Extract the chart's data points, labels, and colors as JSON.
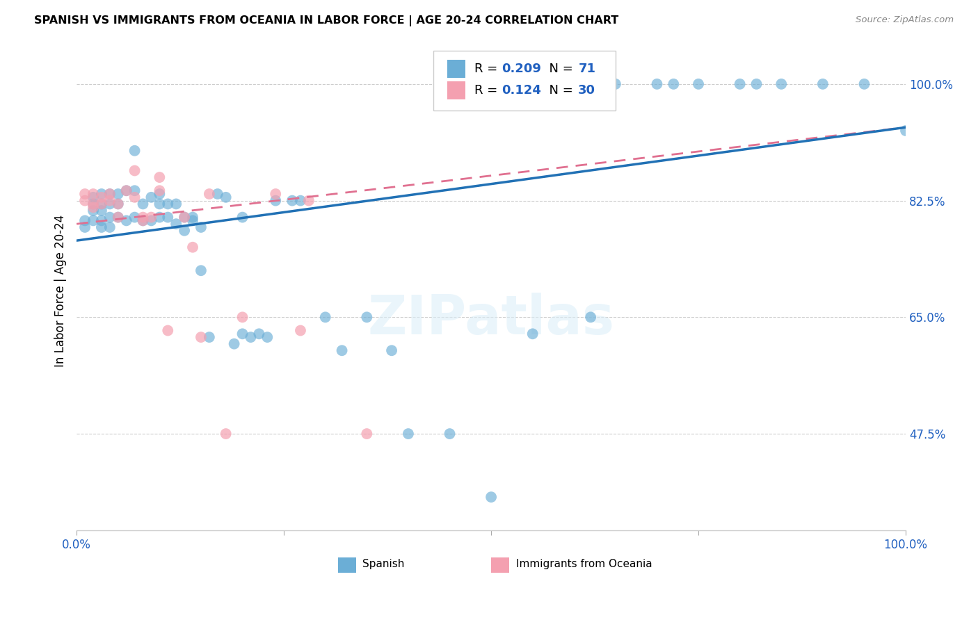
{
  "title": "SPANISH VS IMMIGRANTS FROM OCEANIA IN LABOR FORCE | AGE 20-24 CORRELATION CHART",
  "source": "Source: ZipAtlas.com",
  "ylabel": "In Labor Force | Age 20-24",
  "legend_label1": "Spanish",
  "legend_label2": "Immigrants from Oceania",
  "R1": 0.209,
  "N1": 71,
  "R2": 0.124,
  "N2": 30,
  "color_blue": "#6baed6",
  "color_pink": "#f4a0b0",
  "color_blue_line": "#2171b5",
  "color_pink_line": "#e07090",
  "color_text_blue": "#2060c0",
  "xlim": [
    0.0,
    1.0
  ],
  "ylim": [
    0.33,
    1.05
  ],
  "ytick_vals": [
    0.475,
    0.65,
    0.825,
    1.0
  ],
  "ytick_labels": [
    "47.5%",
    "65.0%",
    "82.5%",
    "100.0%"
  ],
  "blue_x": [
    0.01,
    0.01,
    0.02,
    0.02,
    0.02,
    0.02,
    0.03,
    0.03,
    0.03,
    0.03,
    0.03,
    0.04,
    0.04,
    0.04,
    0.04,
    0.05,
    0.05,
    0.05,
    0.06,
    0.06,
    0.07,
    0.07,
    0.07,
    0.08,
    0.08,
    0.09,
    0.09,
    0.1,
    0.1,
    0.1,
    0.11,
    0.11,
    0.12,
    0.12,
    0.13,
    0.13,
    0.14,
    0.14,
    0.15,
    0.15,
    0.16,
    0.17,
    0.18,
    0.19,
    0.2,
    0.2,
    0.21,
    0.22,
    0.23,
    0.24,
    0.26,
    0.27,
    0.3,
    0.32,
    0.35,
    0.38,
    0.4,
    0.45,
    0.5,
    0.55,
    0.62,
    0.65,
    0.7,
    0.72,
    0.75,
    0.8,
    0.82,
    0.85,
    0.9,
    0.95,
    1.0
  ],
  "blue_y": [
    0.795,
    0.785,
    0.83,
    0.82,
    0.81,
    0.795,
    0.835,
    0.82,
    0.81,
    0.795,
    0.785,
    0.835,
    0.82,
    0.8,
    0.785,
    0.835,
    0.82,
    0.8,
    0.84,
    0.795,
    0.9,
    0.84,
    0.8,
    0.82,
    0.795,
    0.83,
    0.795,
    0.835,
    0.82,
    0.8,
    0.82,
    0.8,
    0.82,
    0.79,
    0.8,
    0.78,
    0.8,
    0.795,
    0.785,
    0.72,
    0.62,
    0.835,
    0.83,
    0.61,
    0.8,
    0.625,
    0.62,
    0.625,
    0.62,
    0.825,
    0.825,
    0.825,
    0.65,
    0.6,
    0.65,
    0.6,
    0.475,
    0.475,
    0.38,
    0.625,
    0.65,
    1.0,
    1.0,
    1.0,
    1.0,
    1.0,
    1.0,
    1.0,
    1.0,
    1.0,
    0.93
  ],
  "pink_x": [
    0.01,
    0.01,
    0.02,
    0.02,
    0.02,
    0.03,
    0.03,
    0.04,
    0.04,
    0.05,
    0.05,
    0.06,
    0.07,
    0.07,
    0.08,
    0.08,
    0.09,
    0.1,
    0.1,
    0.11,
    0.13,
    0.14,
    0.15,
    0.16,
    0.18,
    0.2,
    0.24,
    0.27,
    0.28,
    0.35
  ],
  "pink_y": [
    0.835,
    0.825,
    0.835,
    0.82,
    0.815,
    0.83,
    0.82,
    0.835,
    0.825,
    0.82,
    0.8,
    0.84,
    0.87,
    0.83,
    0.8,
    0.795,
    0.8,
    0.86,
    0.84,
    0.63,
    0.8,
    0.755,
    0.62,
    0.835,
    0.475,
    0.65,
    0.835,
    0.63,
    0.825,
    0.475
  ],
  "line_blue_x0": 0.0,
  "line_blue_y0": 0.765,
  "line_blue_x1": 1.0,
  "line_blue_y1": 0.935,
  "line_pink_x0": 0.0,
  "line_pink_y0": 0.79,
  "line_pink_x1": 1.0,
  "line_pink_y1": 0.935
}
